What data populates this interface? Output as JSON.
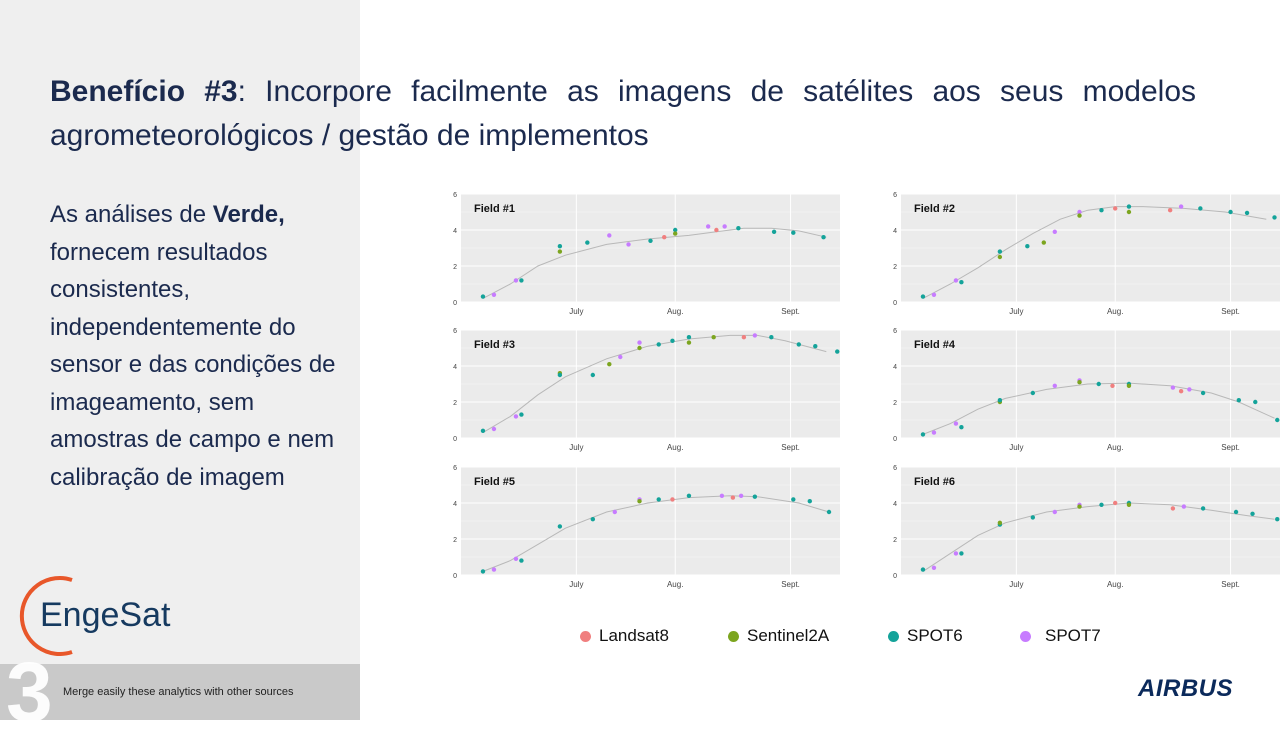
{
  "slide": {
    "title_bold": "Benefício #3",
    "title_rest": ": Incorpore facilmente as imagens de satélites aos seus modelos agrometeorológicos  / gestão de implementos",
    "body_pre": "As análises de ",
    "body_bold": "Verde,",
    "body_post": " fornecem resultados consistentes, independentemente do sensor e das condições de imageamento, sem amostras de campo e nem calibração de imagem",
    "footer_number": "3",
    "footer_text": "Merge easily these analytics with other sources",
    "logo_text": "EngeSat",
    "brand_text": "AIRBUS"
  },
  "colors": {
    "Landsat8": "#f07f7f",
    "Sentinel2A": "#7ca51f",
    "SPOT6": "#14a39a",
    "SPOT7": "#c77cff",
    "logo_orange": "#e8572a",
    "logo_blue": "#163a60"
  },
  "legend": [
    {
      "name": "Landsat8",
      "color": "#f07f7f"
    },
    {
      "name": "Sentinel2A",
      "color": "#7ca51f"
    },
    {
      "name": "SPOT6",
      "color": "#14a39a"
    },
    {
      "name": "SPOT7",
      "color": "#c77cff"
    }
  ],
  "chart_data": [
    {
      "type": "scatter",
      "title": "Field #1",
      "x_ticks": [
        "July",
        "Aug.",
        "Sept."
      ],
      "y_ticks": [
        0,
        2,
        4,
        6
      ],
      "ylim": [
        0,
        6
      ],
      "grid": true,
      "trend": [
        [
          0,
          0.2
        ],
        [
          10,
          1.0
        ],
        [
          20,
          2.0
        ],
        [
          30,
          2.6
        ],
        [
          45,
          3.2
        ],
        [
          60,
          3.5
        ],
        [
          75,
          3.7
        ],
        [
          85,
          3.9
        ],
        [
          95,
          4.1
        ],
        [
          105,
          4.1
        ],
        [
          115,
          3.95
        ],
        [
          125,
          3.6
        ]
      ],
      "points": [
        {
          "s": "SPOT6",
          "x": 0,
          "y": 0.3
        },
        {
          "s": "SPOT7",
          "x": 4,
          "y": 0.4
        },
        {
          "s": "SPOT7",
          "x": 12,
          "y": 1.2
        },
        {
          "s": "SPOT6",
          "x": 14,
          "y": 1.2
        },
        {
          "s": "SPOT6",
          "x": 28,
          "y": 3.1
        },
        {
          "s": "Sentinel2A",
          "x": 28,
          "y": 2.8
        },
        {
          "s": "SPOT6",
          "x": 38,
          "y": 3.3
        },
        {
          "s": "SPOT7",
          "x": 46,
          "y": 3.7
        },
        {
          "s": "SPOT7",
          "x": 53,
          "y": 3.2
        },
        {
          "s": "SPOT6",
          "x": 61,
          "y": 3.4
        },
        {
          "s": "Landsat8",
          "x": 66,
          "y": 3.6
        },
        {
          "s": "SPOT6",
          "x": 70,
          "y": 4.0
        },
        {
          "s": "Sentinel2A",
          "x": 70,
          "y": 3.8
        },
        {
          "s": "SPOT7",
          "x": 82,
          "y": 4.2
        },
        {
          "s": "Landsat8",
          "x": 85,
          "y": 4.0
        },
        {
          "s": "SPOT7",
          "x": 88,
          "y": 4.2
        },
        {
          "s": "SPOT6",
          "x": 93,
          "y": 4.1
        },
        {
          "s": "SPOT6",
          "x": 106,
          "y": 3.9
        },
        {
          "s": "SPOT6",
          "x": 113,
          "y": 3.85
        },
        {
          "s": "SPOT6",
          "x": 124,
          "y": 3.6
        }
      ]
    },
    {
      "type": "scatter",
      "title": "Field #2",
      "x_ticks": [
        "July",
        "Aug.",
        "Sept."
      ],
      "y_ticks": [
        0,
        2,
        4,
        6
      ],
      "ylim": [
        0,
        6
      ],
      "grid": true,
      "trend": [
        [
          0,
          0.2
        ],
        [
          10,
          1.0
        ],
        [
          20,
          1.9
        ],
        [
          30,
          2.9
        ],
        [
          40,
          3.8
        ],
        [
          50,
          4.6
        ],
        [
          60,
          5.1
        ],
        [
          70,
          5.3
        ],
        [
          80,
          5.3
        ],
        [
          95,
          5.2
        ],
        [
          110,
          5.0
        ],
        [
          125,
          4.6
        ]
      ],
      "points": [
        {
          "s": "SPOT6",
          "x": 0,
          "y": 0.3
        },
        {
          "s": "SPOT7",
          "x": 4,
          "y": 0.4
        },
        {
          "s": "SPOT7",
          "x": 12,
          "y": 1.2
        },
        {
          "s": "SPOT6",
          "x": 14,
          "y": 1.1
        },
        {
          "s": "SPOT6",
          "x": 28,
          "y": 2.8
        },
        {
          "s": "Sentinel2A",
          "x": 28,
          "y": 2.5
        },
        {
          "s": "SPOT6",
          "x": 38,
          "y": 3.1
        },
        {
          "s": "Sentinel2A",
          "x": 44,
          "y": 3.3
        },
        {
          "s": "SPOT7",
          "x": 48,
          "y": 3.9
        },
        {
          "s": "SPOT7",
          "x": 57,
          "y": 5.0
        },
        {
          "s": "Sentinel2A",
          "x": 57,
          "y": 4.8
        },
        {
          "s": "SPOT6",
          "x": 65,
          "y": 5.1
        },
        {
          "s": "Landsat8",
          "x": 70,
          "y": 5.2
        },
        {
          "s": "SPOT6",
          "x": 75,
          "y": 5.3
        },
        {
          "s": "Sentinel2A",
          "x": 75,
          "y": 5.0
        },
        {
          "s": "Landsat8",
          "x": 90,
          "y": 5.1
        },
        {
          "s": "SPOT7",
          "x": 94,
          "y": 5.3
        },
        {
          "s": "SPOT6",
          "x": 101,
          "y": 5.2
        },
        {
          "s": "SPOT6",
          "x": 112,
          "y": 5.0
        },
        {
          "s": "SPOT6",
          "x": 118,
          "y": 4.95
        },
        {
          "s": "SPOT6",
          "x": 128,
          "y": 4.7
        }
      ]
    },
    {
      "type": "scatter",
      "title": "Field #3",
      "x_ticks": [
        "July",
        "Aug.",
        "Sept."
      ],
      "y_ticks": [
        0,
        2,
        4,
        6
      ],
      "ylim": [
        0,
        6
      ],
      "grid": true,
      "trend": [
        [
          0,
          0.3
        ],
        [
          10,
          1.2
        ],
        [
          20,
          2.4
        ],
        [
          30,
          3.4
        ],
        [
          45,
          4.4
        ],
        [
          60,
          5.1
        ],
        [
          75,
          5.5
        ],
        [
          90,
          5.7
        ],
        [
          100,
          5.7
        ],
        [
          110,
          5.4
        ],
        [
          125,
          4.8
        ]
      ],
      "points": [
        {
          "s": "SPOT6",
          "x": 0,
          "y": 0.4
        },
        {
          "s": "SPOT7",
          "x": 4,
          "y": 0.5
        },
        {
          "s": "SPOT7",
          "x": 12,
          "y": 1.2
        },
        {
          "s": "SPOT6",
          "x": 14,
          "y": 1.3
        },
        {
          "s": "Sentinel2A",
          "x": 28,
          "y": 3.6
        },
        {
          "s": "SPOT6",
          "x": 28,
          "y": 3.5
        },
        {
          "s": "SPOT6",
          "x": 40,
          "y": 3.5
        },
        {
          "s": "Sentinel2A",
          "x": 46,
          "y": 4.1
        },
        {
          "s": "SPOT7",
          "x": 50,
          "y": 4.5
        },
        {
          "s": "SPOT7",
          "x": 57,
          "y": 5.3
        },
        {
          "s": "Sentinel2A",
          "x": 57,
          "y": 5.0
        },
        {
          "s": "SPOT6",
          "x": 64,
          "y": 5.2
        },
        {
          "s": "SPOT6",
          "x": 69,
          "y": 5.4
        },
        {
          "s": "SPOT6",
          "x": 75,
          "y": 5.6
        },
        {
          "s": "Sentinel2A",
          "x": 75,
          "y": 5.3
        },
        {
          "s": "Sentinel2A",
          "x": 84,
          "y": 5.6
        },
        {
          "s": "Landsat8",
          "x": 95,
          "y": 5.6
        },
        {
          "s": "SPOT7",
          "x": 99,
          "y": 5.7
        },
        {
          "s": "SPOT6",
          "x": 105,
          "y": 5.6
        },
        {
          "s": "SPOT6",
          "x": 115,
          "y": 5.2
        },
        {
          "s": "SPOT6",
          "x": 121,
          "y": 5.1
        },
        {
          "s": "SPOT6",
          "x": 129,
          "y": 4.8
        }
      ]
    },
    {
      "type": "scatter",
      "title": "Field #4",
      "x_ticks": [
        "July",
        "Aug.",
        "Sept."
      ],
      "y_ticks": [
        0,
        2,
        4,
        6
      ],
      "ylim": [
        0,
        6
      ],
      "grid": true,
      "trend": [
        [
          0,
          0.2
        ],
        [
          10,
          0.8
        ],
        [
          20,
          1.6
        ],
        [
          30,
          2.2
        ],
        [
          45,
          2.7
        ],
        [
          60,
          3.0
        ],
        [
          75,
          3.05
        ],
        [
          90,
          2.9
        ],
        [
          105,
          2.5
        ],
        [
          115,
          2.0
        ],
        [
          128,
          1.1
        ]
      ],
      "points": [
        {
          "s": "SPOT6",
          "x": 0,
          "y": 0.2
        },
        {
          "s": "SPOT7",
          "x": 4,
          "y": 0.3
        },
        {
          "s": "SPOT7",
          "x": 12,
          "y": 0.8
        },
        {
          "s": "SPOT6",
          "x": 14,
          "y": 0.6
        },
        {
          "s": "Sentinel2A",
          "x": 28,
          "y": 2.0
        },
        {
          "s": "SPOT6",
          "x": 28,
          "y": 2.1
        },
        {
          "s": "SPOT6",
          "x": 40,
          "y": 2.5
        },
        {
          "s": "SPOT7",
          "x": 48,
          "y": 2.9
        },
        {
          "s": "SPOT7",
          "x": 57,
          "y": 3.2
        },
        {
          "s": "Sentinel2A",
          "x": 57,
          "y": 3.1
        },
        {
          "s": "SPOT6",
          "x": 64,
          "y": 3.0
        },
        {
          "s": "Landsat8",
          "x": 69,
          "y": 2.9
        },
        {
          "s": "SPOT6",
          "x": 75,
          "y": 3.0
        },
        {
          "s": "Sentinel2A",
          "x": 75,
          "y": 2.9
        },
        {
          "s": "SPOT7",
          "x": 91,
          "y": 2.8
        },
        {
          "s": "Landsat8",
          "x": 94,
          "y": 2.6
        },
        {
          "s": "SPOT7",
          "x": 97,
          "y": 2.7
        },
        {
          "s": "SPOT6",
          "x": 102,
          "y": 2.5
        },
        {
          "s": "SPOT6",
          "x": 115,
          "y": 2.1
        },
        {
          "s": "SPOT6",
          "x": 121,
          "y": 2.0
        },
        {
          "s": "SPOT6",
          "x": 129,
          "y": 1.0
        }
      ]
    },
    {
      "type": "scatter",
      "title": "Field #5",
      "x_ticks": [
        "July",
        "Aug.",
        "Sept."
      ],
      "y_ticks": [
        0,
        2,
        4,
        6
      ],
      "ylim": [
        0,
        6
      ],
      "grid": true,
      "trend": [
        [
          0,
          0.2
        ],
        [
          10,
          0.8
        ],
        [
          20,
          1.7
        ],
        [
          30,
          2.6
        ],
        [
          45,
          3.5
        ],
        [
          60,
          4.0
        ],
        [
          75,
          4.3
        ],
        [
          90,
          4.4
        ],
        [
          100,
          4.35
        ],
        [
          115,
          4.0
        ],
        [
          126,
          3.5
        ]
      ],
      "points": [
        {
          "s": "SPOT6",
          "x": 0,
          "y": 0.2
        },
        {
          "s": "SPOT7",
          "x": 4,
          "y": 0.3
        },
        {
          "s": "SPOT7",
          "x": 12,
          "y": 0.9
        },
        {
          "s": "SPOT6",
          "x": 14,
          "y": 0.8
        },
        {
          "s": "SPOT6",
          "x": 28,
          "y": 2.7
        },
        {
          "s": "SPOT6",
          "x": 40,
          "y": 3.1
        },
        {
          "s": "SPOT7",
          "x": 48,
          "y": 3.5
        },
        {
          "s": "SPOT7",
          "x": 57,
          "y": 4.2
        },
        {
          "s": "Sentinel2A",
          "x": 57,
          "y": 4.1
        },
        {
          "s": "SPOT6",
          "x": 64,
          "y": 4.2
        },
        {
          "s": "Landsat8",
          "x": 69,
          "y": 4.2
        },
        {
          "s": "SPOT6",
          "x": 75,
          "y": 4.4
        },
        {
          "s": "SPOT7",
          "x": 87,
          "y": 4.4
        },
        {
          "s": "Landsat8",
          "x": 91,
          "y": 4.3
        },
        {
          "s": "SPOT7",
          "x": 94,
          "y": 4.4
        },
        {
          "s": "SPOT6",
          "x": 99,
          "y": 4.35
        },
        {
          "s": "SPOT6",
          "x": 113,
          "y": 4.2
        },
        {
          "s": "SPOT6",
          "x": 119,
          "y": 4.1
        },
        {
          "s": "SPOT6",
          "x": 126,
          "y": 3.5
        }
      ]
    },
    {
      "type": "scatter",
      "title": "Field #6",
      "x_ticks": [
        "July",
        "Aug.",
        "Sept."
      ],
      "y_ticks": [
        0,
        2,
        4,
        6
      ],
      "ylim": [
        0,
        6
      ],
      "grid": true,
      "trend": [
        [
          0,
          0.2
        ],
        [
          10,
          1.2
        ],
        [
          20,
          2.2
        ],
        [
          30,
          2.9
        ],
        [
          45,
          3.5
        ],
        [
          60,
          3.8
        ],
        [
          75,
          4.0
        ],
        [
          90,
          3.9
        ],
        [
          105,
          3.6
        ],
        [
          118,
          3.3
        ],
        [
          128,
          3.1
        ]
      ],
      "points": [
        {
          "s": "SPOT6",
          "x": 0,
          "y": 0.3
        },
        {
          "s": "SPOT7",
          "x": 4,
          "y": 0.4
        },
        {
          "s": "SPOT7",
          "x": 12,
          "y": 1.2
        },
        {
          "s": "SPOT6",
          "x": 14,
          "y": 1.2
        },
        {
          "s": "SPOT6",
          "x": 28,
          "y": 2.8
        },
        {
          "s": "Sentinel2A",
          "x": 28,
          "y": 2.9
        },
        {
          "s": "SPOT6",
          "x": 40,
          "y": 3.2
        },
        {
          "s": "SPOT7",
          "x": 48,
          "y": 3.5
        },
        {
          "s": "SPOT7",
          "x": 57,
          "y": 3.9
        },
        {
          "s": "Sentinel2A",
          "x": 57,
          "y": 3.8
        },
        {
          "s": "SPOT6",
          "x": 65,
          "y": 3.9
        },
        {
          "s": "Landsat8",
          "x": 70,
          "y": 4.0
        },
        {
          "s": "SPOT6",
          "x": 75,
          "y": 4.0
        },
        {
          "s": "Sentinel2A",
          "x": 75,
          "y": 3.9
        },
        {
          "s": "Landsat8",
          "x": 91,
          "y": 3.7
        },
        {
          "s": "SPOT7",
          "x": 95,
          "y": 3.8
        },
        {
          "s": "SPOT6",
          "x": 102,
          "y": 3.7
        },
        {
          "s": "SPOT6",
          "x": 114,
          "y": 3.5
        },
        {
          "s": "SPOT6",
          "x": 120,
          "y": 3.4
        },
        {
          "s": "SPOT6",
          "x": 129,
          "y": 3.1
        }
      ]
    }
  ]
}
